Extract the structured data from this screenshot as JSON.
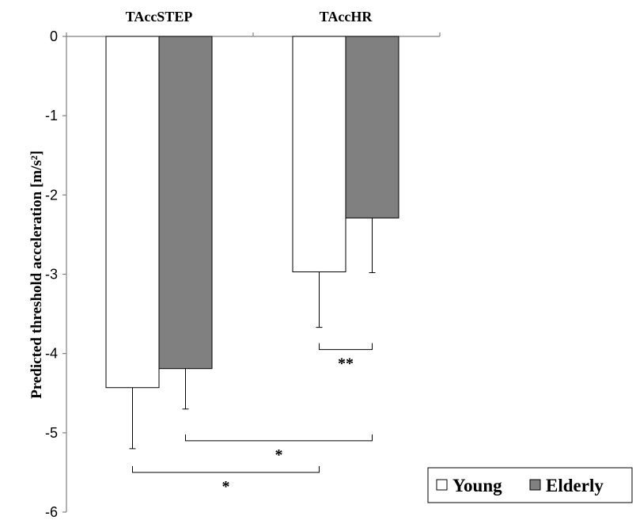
{
  "chart_data": {
    "type": "bar",
    "title": "",
    "xlabel": "",
    "ylabel": "Predicted threshold acceleration [m/s²]",
    "ylim": [
      -6,
      0
    ],
    "yticks": [
      0,
      -1,
      -2,
      -3,
      -4,
      -5,
      -6
    ],
    "categories": [
      "TAccSTEP",
      "TAccHR"
    ],
    "category_position": "top",
    "series": [
      {
        "name": "Young",
        "color": "#ffffff",
        "values": [
          -4.43,
          -2.97
        ],
        "errors": [
          0.77,
          0.7
        ]
      },
      {
        "name": "Elderly",
        "color": "#808080",
        "values": [
          -4.19,
          -2.29
        ],
        "errors": [
          0.51,
          0.69
        ]
      }
    ],
    "significance": [
      {
        "label": "**",
        "from": {
          "category": 1,
          "series": 0
        },
        "to": {
          "category": 1,
          "series": 1
        },
        "y": -3.95
      },
      {
        "label": "*",
        "from": {
          "category": 0,
          "series": 1
        },
        "to": {
          "category": 1,
          "series": 1
        },
        "y": -5.1
      },
      {
        "label": "*",
        "from": {
          "category": 0,
          "series": 0
        },
        "to": {
          "category": 1,
          "series": 0
        },
        "y": -5.5
      }
    ],
    "legend": {
      "position": "bottom-right",
      "border": true
    },
    "grid": false
  }
}
